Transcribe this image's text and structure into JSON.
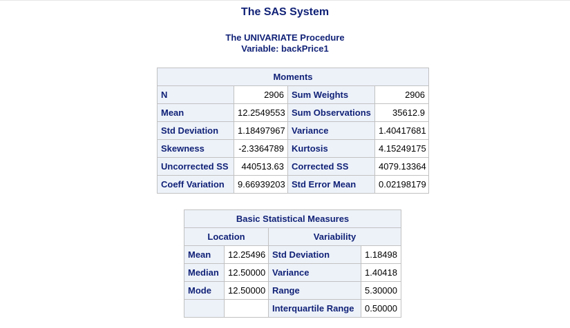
{
  "title": "The SAS System",
  "procedure": "The UNIVARIATE Procedure",
  "variable": "Variable: backPrice1",
  "moments": {
    "caption": "Moments",
    "rows": [
      {
        "label1": "N",
        "value1": "2906",
        "label2": "Sum Weights",
        "value2": "2906"
      },
      {
        "label1": "Mean",
        "value1": "12.2549553",
        "label2": "Sum Observations",
        "value2": "35612.9"
      },
      {
        "label1": "Std Deviation",
        "value1": "1.18497967",
        "label2": "Variance",
        "value2": "1.40417681"
      },
      {
        "label1": "Skewness",
        "value1": "-2.3364789",
        "label2": "Kurtosis",
        "value2": "4.15249175"
      },
      {
        "label1": "Uncorrected SS",
        "value1": "440513.63",
        "label2": "Corrected SS",
        "value2": "4079.13364"
      },
      {
        "label1": "Coeff Variation",
        "value1": "9.66939203",
        "label2": "Std Error Mean",
        "value2": "0.02198179"
      }
    ]
  },
  "basic": {
    "caption": "Basic Statistical Measures",
    "location_header": "Location",
    "variability_header": "Variability",
    "rows": [
      {
        "loc_label": "Mean",
        "loc_value": "12.25496",
        "var_label": "Std Deviation",
        "var_value": "1.18498"
      },
      {
        "loc_label": "Median",
        "loc_value": "12.50000",
        "var_label": "Variance",
        "var_value": "1.40418"
      },
      {
        "loc_label": "Mode",
        "loc_value": "12.50000",
        "var_label": "Range",
        "var_value": "5.30000"
      },
      {
        "loc_label": "",
        "loc_value": "",
        "var_label": "Interquartile Range",
        "var_value": "0.50000"
      }
    ]
  }
}
